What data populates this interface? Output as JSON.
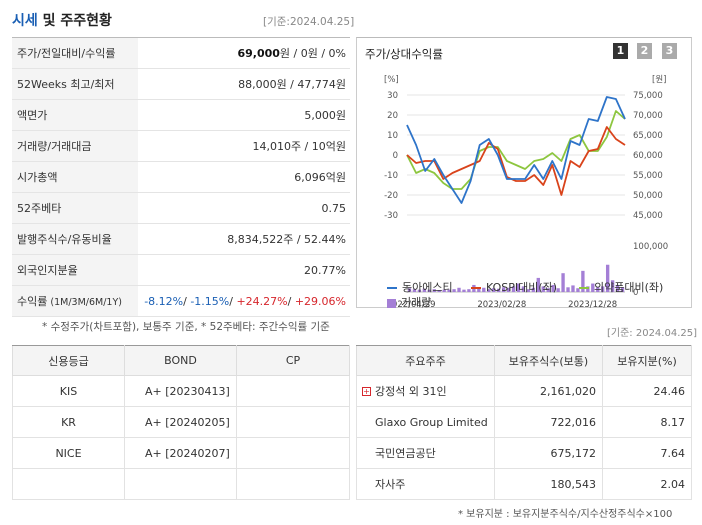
{
  "header": {
    "title_blue": "시세",
    "title_rest": " 및 주주현황",
    "date": "[기준:2024.04.25]"
  },
  "price_table": [
    {
      "label": "주가/전일대비/수익률",
      "value_bold": "69,000",
      "value_rest": "원 / 0원 / 0%"
    },
    {
      "label": "52Weeks 최고/최저",
      "value": "88,000원 / 47,774원"
    },
    {
      "label": "액면가",
      "value": "5,000원"
    },
    {
      "label": "거래량/거래대금",
      "value": "14,010주 / 10억원"
    },
    {
      "label": "시가총액",
      "value": "6,096억원"
    },
    {
      "label": "52주베타",
      "value": "0.75"
    },
    {
      "label": "발행주식수/유동비율",
      "value": "8,834,522주 / 52.44%"
    },
    {
      "label": "외국인지분율",
      "value": "20.77%"
    }
  ],
  "returns_row": {
    "label": "수익률",
    "label_small": " (1M/3M/6M/1Y)",
    "r1m": "-8.12%",
    "r3m": "-1.15%",
    "r6m": "+24.27%",
    "r1y": "+29.06%",
    "sep": "/ "
  },
  "chart": {
    "title": "주가/상대수익률",
    "pages": [
      "1",
      "2",
      "3"
    ],
    "active_page": 0,
    "left_unit": "[%]",
    "right_unit": "[원]",
    "legend": [
      "동아에스티",
      "KOSPI대비(좌)",
      "의약품대비(좌)",
      "거래량"
    ],
    "colors": {
      "main": "#2e74c9",
      "kospi": "#d9431b",
      "pharma": "#8dc63f",
      "volume": "#a47fd6"
    }
  },
  "chart_data": {
    "type": "line",
    "x_tick_labels": [
      "2022/04/29",
      "2023/02/28",
      "2023/12/28"
    ],
    "x_tick_index": [
      0,
      10,
      20
    ],
    "left_axis": {
      "ticks": [
        30,
        20,
        10,
        0,
        -10,
        -20,
        -30
      ],
      "ylim": [
        -30,
        30
      ]
    },
    "right_axis": {
      "ticks": [
        "75,000",
        "70,000",
        "65,000",
        "60,000",
        "55,000",
        "50,000",
        "45,000"
      ],
      "ylim": [
        45000,
        75000
      ]
    },
    "volume_axis": {
      "ticks": [
        "100,000",
        "0"
      ],
      "ylim": [
        0,
        100000
      ]
    },
    "series": [
      {
        "name": "동아에스티",
        "values": [
          15,
          5,
          -8,
          -2,
          -10,
          -17,
          -24,
          -13,
          5,
          8,
          0,
          -12,
          -12,
          -12,
          -5,
          -12,
          -3,
          -12,
          7,
          5,
          18,
          17,
          29,
          28,
          18
        ]
      },
      {
        "name": "KOSPI대비(좌)",
        "values": [
          0,
          -4,
          -3,
          -3,
          -12,
          -9,
          -7,
          -5,
          -3,
          6,
          3,
          -11,
          -13,
          -13,
          -10,
          -15,
          -5,
          -20,
          -3,
          -6,
          2,
          3,
          14,
          8,
          5
        ]
      },
      {
        "name": "의약품대비(좌)",
        "values": [
          0,
          -9,
          -7,
          -9,
          -14,
          -17,
          -17,
          -12,
          2,
          4,
          4,
          -3,
          -5,
          -7,
          -3,
          -2,
          1,
          -3,
          8,
          10,
          2,
          2,
          9,
          22,
          18
        ]
      }
    ],
    "volume_series": {
      "name": "거래량",
      "values": [
        8000,
        6000,
        5000,
        7000,
        5000,
        6000,
        4000,
        5000,
        5000,
        6000,
        9000,
        5000,
        6000,
        15000,
        8000,
        9000,
        6000,
        8000,
        7000,
        10000,
        9000,
        12000,
        18000,
        12000,
        6000,
        9000,
        30000,
        12000,
        8000,
        15000,
        8000,
        40000,
        10000,
        14000,
        8000,
        45000,
        12000,
        18000,
        10000,
        12000,
        58000,
        25000,
        15000,
        10000
      ]
    }
  },
  "notes": {
    "left": "* 수정주가(차트포함), 보통주 기준, * 52주베타: 주간수익률 기준",
    "right_date": "[기준: 2024.04.25]",
    "bottom": "* 보유지분 : 보유지분주식수/지수산정주식수×100"
  },
  "credit": {
    "headers": [
      "신용등급",
      "BOND",
      "CP"
    ],
    "rows": [
      {
        "agency": "KIS",
        "bond": "A+ [20230413]",
        "cp": ""
      },
      {
        "agency": "KR",
        "bond": "A+ [20240205]",
        "cp": ""
      },
      {
        "agency": "NICE",
        "bond": "A+ [20240207]",
        "cp": ""
      },
      {
        "agency": "",
        "bond": "",
        "cp": ""
      }
    ]
  },
  "holders": {
    "headers": [
      "주요주주",
      "보유주식수(보통)",
      "보유지분(%)"
    ],
    "rows": [
      {
        "name": "강정석 외 31인",
        "shares": "2,161,020",
        "pct": "24.46",
        "expandable": true
      },
      {
        "name": "Glaxo Group Limited",
        "shares": "722,016",
        "pct": "8.17",
        "expandable": false
      },
      {
        "name": "국민연금공단",
        "shares": "675,172",
        "pct": "7.64",
        "expandable": false
      },
      {
        "name": "자사주",
        "shares": "180,543",
        "pct": "2.04",
        "expandable": false
      }
    ]
  }
}
